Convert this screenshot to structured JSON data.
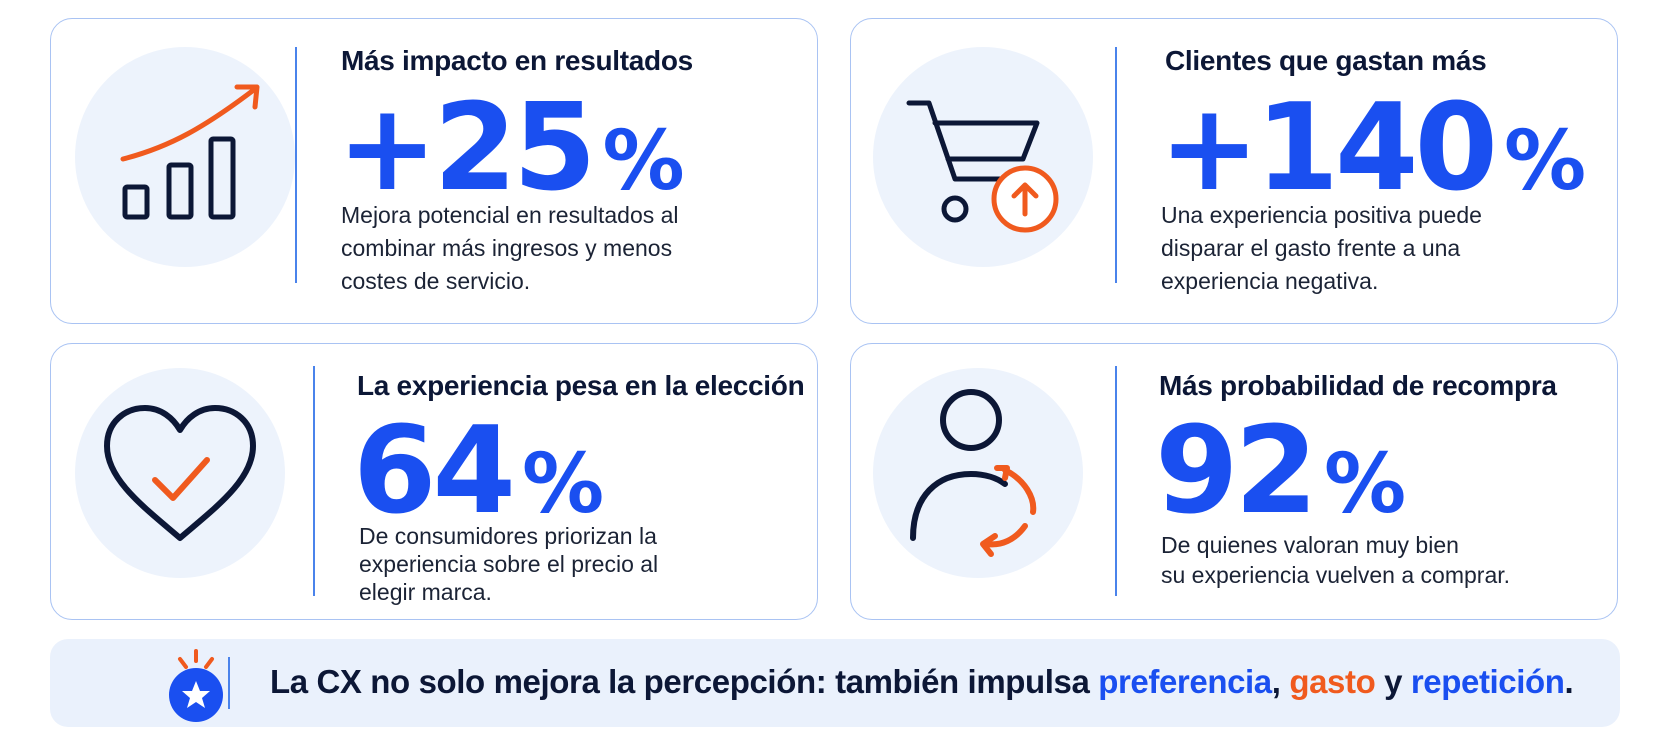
{
  "colors": {
    "accent_blue": "#1a4ff0",
    "accent_orange": "#f05a1e",
    "dark_navy": "#0c1736",
    "icon_bg": "#edf3fc",
    "card_border": "#a9c3f3"
  },
  "cards": [
    {
      "title": "Más impacto en resultados",
      "stat": "+25",
      "percent": "%",
      "desc_lines": [
        "Mejora potencial en resultados al",
        "combinar más ingresos y menos",
        "costes de servicio."
      ],
      "icon": "growth-chart-icon"
    },
    {
      "title": "Clientes que gastan más",
      "stat": "+140",
      "percent": "%",
      "desc_lines": [
        "Una experiencia positiva puede",
        "disparar el gasto frente a una",
        "experiencia negativa."
      ],
      "icon": "shopping-cart-up-icon"
    },
    {
      "title": "La experiencia pesa en la elección",
      "stat": "64",
      "percent": "%",
      "desc_lines": [
        "De consumidores priorizan la",
        "experiencia sobre el precio al",
        "elegir marca."
      ],
      "icon": "heart-check-icon"
    },
    {
      "title": "Más probabilidad de recompra",
      "stat": "92",
      "percent": "%",
      "desc_lines": [
        "De quienes valoran muy bien",
        "su experiencia vuelven a comprar."
      ],
      "icon": "person-repeat-icon"
    }
  ],
  "banner": {
    "icon": "star-badge-icon",
    "text_start": "La CX no solo mejora la percepción: también impulsa ",
    "word_1": "preferencia",
    "comma": ",",
    "word_2": "gasto",
    "connector": " y ",
    "word_3": "repetición",
    "period": "."
  }
}
